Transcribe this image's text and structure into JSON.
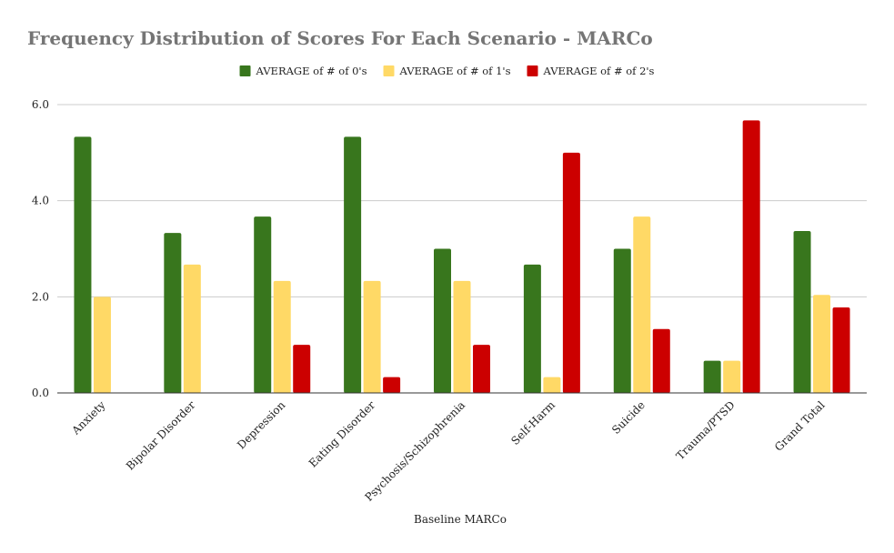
{
  "chart_data": {
    "type": "bar",
    "title": "Frequency Distribution of Scores For Each Scenario - MARCo",
    "xlabel": "Baseline MARCo",
    "ylabel": "",
    "ylim": [
      0,
      6
    ],
    "yticks": [
      "0.0",
      "2.0",
      "4.0",
      "6.0"
    ],
    "ytick_values": [
      0,
      2,
      4,
      6
    ],
    "grid": true,
    "legend_position": "top-center",
    "categories": [
      "Anxiety",
      "Bipolar Disorder",
      "Depression",
      "Eating Disorder",
      "Psychosis/Schizophrenia",
      "Self-Harm",
      "Suicide",
      "Trauma/PTSD",
      "Grand Total"
    ],
    "series": [
      {
        "name": "AVERAGE of # of 0's",
        "color": "#38761d",
        "values": [
          5.33,
          3.33,
          3.67,
          5.33,
          3.0,
          2.67,
          3.0,
          0.67,
          3.37
        ]
      },
      {
        "name": "AVERAGE of # of 1's",
        "color": "#ffd966",
        "values": [
          2.0,
          2.67,
          2.33,
          2.33,
          2.33,
          0.33,
          3.67,
          0.67,
          2.04
        ]
      },
      {
        "name": "AVERAGE of # of 2's",
        "color": "#cc0000",
        "values": [
          0,
          0,
          1.0,
          0.33,
          1.0,
          5.0,
          1.33,
          5.67,
          1.78
        ]
      }
    ]
  }
}
